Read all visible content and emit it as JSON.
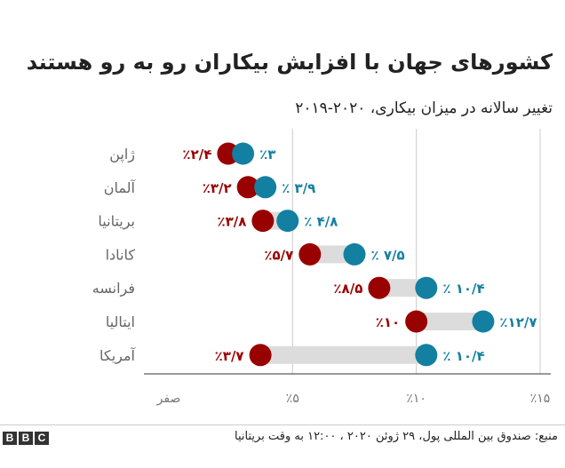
{
  "title": "کشورهای جهان با افزایش بیکاران رو به رو هستند",
  "subtitle": "تغییر سالانه در میزان بیکاری، ۲۰۲۰-۲۰۱۹",
  "source": "منبع: صندوق بین المللی پول، ۲۹ ژوئن ۲۰۲۰ ، ۱۲:۰۰ به وقت بریتانیا",
  "logo": [
    "B",
    "B",
    "C"
  ],
  "colors": {
    "series_2019": "#990000",
    "series_2020": "#1380a1",
    "connector": "#dcdcdc",
    "grid": "#cccccc",
    "axis": "#333333",
    "axis_text": "#777777",
    "country_text": "#666666"
  },
  "chart_data": {
    "type": "dot-range",
    "categories": [
      "ژاپن",
      "آلمان",
      "بریتانیا",
      "کانادا",
      "فرانسه",
      "ایتالیا",
      "آمریکا"
    ],
    "series": [
      {
        "key": "2019",
        "values": [
          2.4,
          3.2,
          3.8,
          5.7,
          8.5,
          10,
          3.7
        ],
        "labels": [
          "٪۲/۴",
          "٪۳/۲",
          "٪۳/۸",
          "٪۵/۷",
          "٪۸/۵",
          "٪۱۰",
          "٪۳/۷"
        ]
      },
      {
        "key": "2020",
        "values": [
          3.0,
          3.9,
          4.8,
          7.5,
          10.4,
          12.7,
          10.4
        ],
        "labels": [
          "٪۳",
          "٪ ۳/۹",
          "٪ ۴/۸",
          "٪ ۷/۵",
          "٪ ۱۰/۴",
          "٪۱۲/۷",
          "٪ ۱۰/۴"
        ]
      }
    ],
    "x_ticks": [
      0,
      5,
      10,
      15
    ],
    "x_tick_labels": [
      "صفر",
      "٪۵",
      "٪۱۰",
      "٪۱۵"
    ],
    "xlim": [
      0,
      15
    ],
    "grid": true
  }
}
